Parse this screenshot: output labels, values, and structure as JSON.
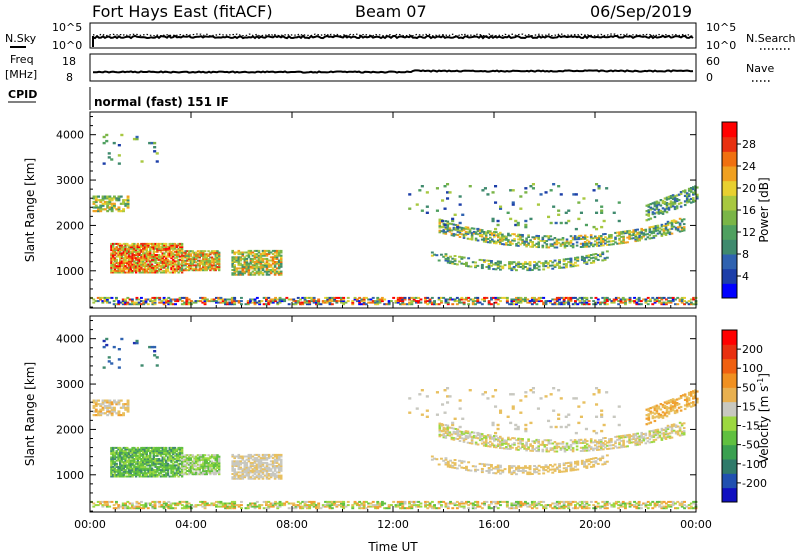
{
  "header": {
    "station": "Fort Hays East (fitACF)",
    "beam": "Beam 07",
    "date": "06/Sep/2019"
  },
  "status": {
    "nsky_label": "N.Sky",
    "nsky_ticks": [
      "10^5",
      "10^0"
    ],
    "nsearch_label": "N.Search",
    "nsearch_ticks": [
      "10^5",
      "10^0"
    ],
    "freq_label_line1": "Freq",
    "freq_label_line2": "[MHz]",
    "freq_ticks": [
      "18",
      "8"
    ],
    "nave_label": "Nave",
    "nave_ticks": [
      "60",
      "0"
    ],
    "cpid_label": "CPID",
    "cpid_value": "normal (fast) 151 IF"
  },
  "colors": {
    "power_scale": [
      "#0000ff",
      "#1c3ea8",
      "#2f62b0",
      "#3f8a6e",
      "#4fa060",
      "#7ab547",
      "#a8c840",
      "#e8d030",
      "#f0a020",
      "#f07010",
      "#e83010",
      "#ff0000"
    ],
    "velocity_scale": [
      "#1010c0",
      "#2050b0",
      "#2f7a6a",
      "#3aa050",
      "#60c040",
      "#9cd840",
      "#c8c8c0",
      "#e8b050",
      "#f09020",
      "#f06010",
      "#e83010",
      "#ff0000"
    ],
    "velocity_levels": [
      "#2030b0",
      "#2f62b0",
      "#3f8a6e",
      "#60c040",
      "#9cd840",
      "#c8c8c0",
      "#e8c060",
      "#f0a030",
      "#f07010",
      "#e83010"
    ]
  },
  "chart_data": [
    {
      "type": "heatmap",
      "title": "",
      "quantity": "Power",
      "colorbar_label": "Power [dB]",
      "colorbar_ticks": [
        "28",
        "24",
        "20",
        "16",
        "12",
        "8",
        "4"
      ],
      "xlabel": "",
      "ylabel": "Slant Range [km]",
      "xlim": [
        "00:00",
        "24:00"
      ],
      "ylim": [
        180,
        4500
      ],
      "x_ticks": [
        "00:00",
        "04:00",
        "08:00",
        "12:00",
        "16:00",
        "20:00",
        "00:00"
      ],
      "y_ticks": [
        "1000",
        "2000",
        "3000",
        "4000"
      ]
    },
    {
      "type": "heatmap",
      "title": "",
      "quantity": "Velocity",
      "colorbar_label": "Velocity [m s^-1]",
      "colorbar_ticks": [
        "200",
        "100",
        "50",
        "15",
        "-15",
        "-50",
        "-100",
        "-200"
      ],
      "xlabel": "Time UT",
      "ylabel": "Slant Range [km]",
      "xlim": [
        "00:00",
        "24:00"
      ],
      "ylim": [
        180,
        4500
      ],
      "x_ticks": [
        "00:00",
        "04:00",
        "08:00",
        "12:00",
        "16:00",
        "20:00",
        "00:00"
      ],
      "y_ticks": [
        "1000",
        "2000",
        "3000",
        "4000"
      ]
    }
  ]
}
